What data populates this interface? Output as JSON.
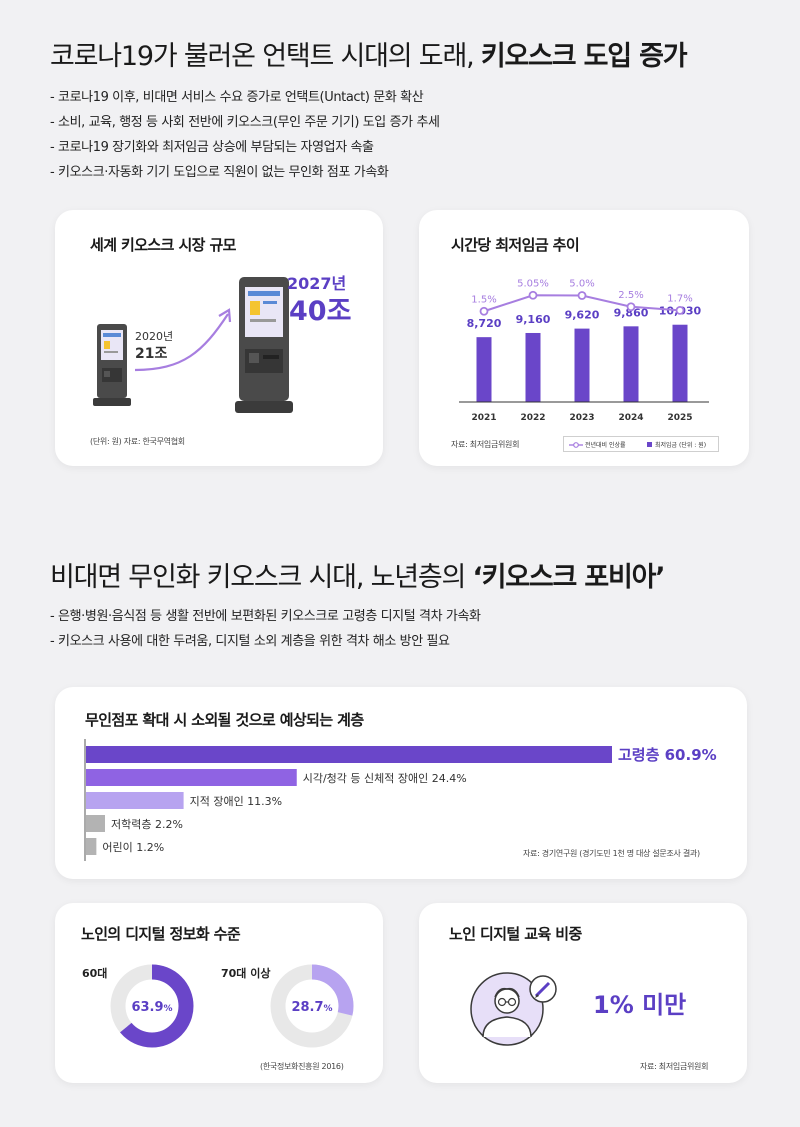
{
  "section1": {
    "title_normal": "코로나19가 불러온 언택트 시대의 도래, ",
    "title_bold": "키오스크 도입 증가",
    "bullets": [
      "코로나19 이후, 비대면 서비스 수요 증가로 언택트(Untact) 문화 확산",
      "소비, 교육, 행정 등 사회 전반에 키오스크(무인 주문 기기) 도입 증가 추세",
      "코로나19 장기화와 최저임금 상승에 부담되는 자영업자 속출",
      "키오스크·자동화 기기 도입으로 직원이 없는 무인화 점포 가속화"
    ]
  },
  "market_card": {
    "title": "세계 키오스크 시장 규모",
    "y2020_label": "2020년",
    "y2020_value": "21조",
    "y2027_label": "2027년",
    "y2027_value": "40조",
    "source": "(단위: 원) 자료: 한국무역협회"
  },
  "wage_card": {
    "title": "시간당 최저임금 추이",
    "source": "자료: 최저임금위원회",
    "legend_rate": "전년대비 인상률",
    "legend_wage": "최저임금 (단위 : 원)"
  },
  "section2": {
    "title_normal": "비대면 무인화 키오스크 시대, 노년층의 ",
    "title_bold": "‘키오스크 포비아’",
    "bullets": [
      "은행·병원·음식점 등 생활 전반에 보편화된 키오스크로 고령층 디지털 격차 가속화",
      "키오스크 사용에 대한 두려움, 디지털 소외 계층을 위한 격차 해소 방안 필요"
    ]
  },
  "excluded_card": {
    "title": "무인점포 확대 시 소외될 것으로 예상되는 계층",
    "source": "자료: 경기연구원 (경기도민 1천 명 대상 설문조사 결과)"
  },
  "info_card": {
    "title": "노인의 디지털 정보화 수준",
    "group1_label": "60대",
    "group1_value": "63.9",
    "group2_label": "70대 이상",
    "group2_value": "28.7",
    "percent_sign": "%",
    "source": "(한국정보화진흥원 2016)"
  },
  "edu_card": {
    "title": "노인 디지털 교육 비중",
    "value": "1% 미만",
    "source": "자료: 최저임금위원회"
  },
  "colors": {
    "accent": "#5b3fc4",
    "bar_dark": "#6a46c9",
    "bar_mid": "#8f63e3",
    "bar_light": "#b7a3f0",
    "bar_gray": "#b3b3b3",
    "line_purple": "#a77ee0",
    "donut_track": "#e8e8e8"
  },
  "chart_data": [
    {
      "type": "bar",
      "title": "시간당 최저임금 추이",
      "categories": [
        "2021",
        "2022",
        "2023",
        "2024",
        "2025"
      ],
      "series": [
        {
          "name": "최저임금 (단위 : 원)",
          "values": [
            8720,
            9160,
            9620,
            9860,
            10030
          ],
          "labels": [
            "8,720",
            "9,160",
            "9,620",
            "9,860",
            "10,030"
          ]
        },
        {
          "name": "전년대비 인상률",
          "values": [
            1.5,
            5.05,
            5.0,
            2.5,
            1.7
          ],
          "labels": [
            "1.5%",
            "5.05%",
            "5.0%",
            "2.5%",
            "1.7%"
          ]
        }
      ]
    },
    {
      "type": "bar",
      "orientation": "horizontal",
      "title": "무인점포 확대 시 소외될 것으로 예상되는 계층",
      "categories": [
        "고령층",
        "시각/청각 등 신체적 장애인",
        "지적 장애인",
        "저학력층",
        "어린이"
      ],
      "values": [
        60.9,
        24.4,
        11.3,
        2.2,
        1.2
      ],
      "labels": [
        "고령층 60.9%",
        "시각/청각 등 신체적 장애인 24.4%",
        "지적 장애인 11.3%",
        "저학력층 2.2%",
        "어린이 1.2%"
      ]
    },
    {
      "type": "pie",
      "title": "노인의 디지털 정보화 수준",
      "categories": [
        "60대",
        "70대 이상"
      ],
      "values": [
        63.9,
        28.7
      ]
    }
  ]
}
